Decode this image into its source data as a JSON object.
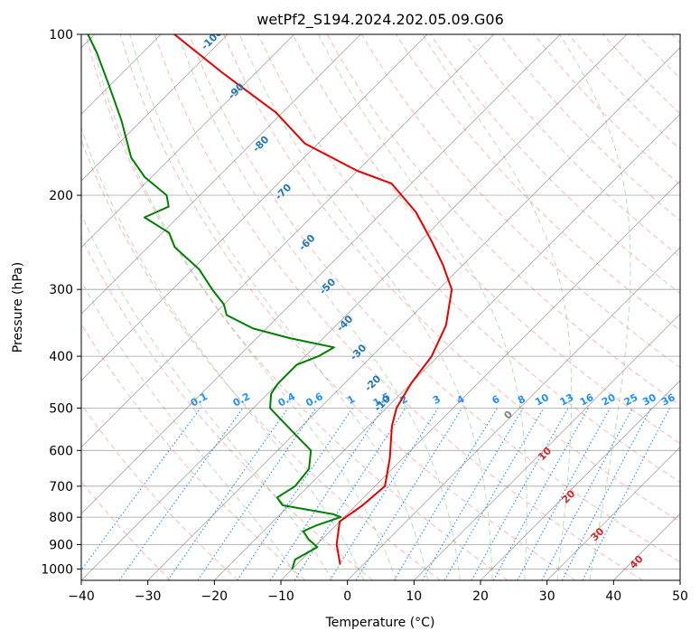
{
  "chart_data": {
    "type": "line",
    "diagram": "skew-t",
    "title": "wetPf2_S194.2024.202.05.09.G06",
    "xlabel": "Temperature (°C)",
    "ylabel": "Pressure (hPa)",
    "x_scale": "linear",
    "y_scale": "log",
    "xlim": [
      -40,
      50
    ],
    "ylim": [
      1050,
      100
    ],
    "x_ticks": [
      "−40",
      "−30",
      "−20",
      "−10",
      "0",
      "10",
      "20",
      "30",
      "40",
      "50"
    ],
    "y_ticks": [
      "100",
      "200",
      "300",
      "400",
      "500",
      "600",
      "700",
      "800",
      "900",
      "1000"
    ],
    "grid": true,
    "series": [
      {
        "role": "temperature",
        "color": "#e60000",
        "points": [
          [
            -3.5,
            980
          ],
          [
            -7,
            900
          ],
          [
            -10,
            815
          ],
          [
            -9,
            760
          ],
          [
            -8.5,
            700
          ],
          [
            -12,
            620
          ],
          [
            -16.5,
            540
          ],
          [
            -18.5,
            500
          ],
          [
            -20,
            450
          ],
          [
            -21,
            400
          ],
          [
            -23.5,
            350
          ],
          [
            -28,
            300
          ],
          [
            -33,
            270
          ],
          [
            -38,
            245
          ],
          [
            -45,
            215
          ],
          [
            -53,
            190
          ],
          [
            -60,
            180
          ],
          [
            -72,
            160
          ],
          [
            -81,
            140
          ],
          [
            -95,
            118
          ],
          [
            -108,
            100
          ]
        ]
      },
      {
        "role": "dewpoint",
        "color": "#008000",
        "points": [
          [
            -10,
            1000
          ],
          [
            -11,
            960
          ],
          [
            -9.5,
            910
          ],
          [
            -12,
            880
          ],
          [
            -14,
            850
          ],
          [
            -13,
            830
          ],
          [
            -10.5,
            800
          ],
          [
            -12,
            790
          ],
          [
            -21,
            760
          ],
          [
            -23,
            735
          ],
          [
            -22,
            700
          ],
          [
            -22.5,
            650
          ],
          [
            -25,
            600
          ],
          [
            -31,
            550
          ],
          [
            -37.5,
            500
          ],
          [
            -39.5,
            470
          ],
          [
            -40,
            450
          ],
          [
            -40,
            415
          ],
          [
            -38,
            400
          ],
          [
            -37,
            385
          ],
          [
            -45,
            370
          ],
          [
            -52,
            355
          ],
          [
            -58,
            335
          ],
          [
            -60,
            320
          ],
          [
            -64,
            300
          ],
          [
            -69,
            275
          ],
          [
            -76,
            250
          ],
          [
            -79,
            235
          ],
          [
            -85,
            220
          ],
          [
            -83,
            210
          ],
          [
            -85,
            200
          ],
          [
            -91,
            185
          ],
          [
            -96,
            170
          ],
          [
            -103,
            145
          ],
          [
            -110,
            125
          ],
          [
            -117,
            108
          ],
          [
            -121,
            100
          ]
        ]
      }
    ],
    "dry_adiabats": [
      -30,
      -20,
      -10,
      0,
      10,
      20,
      30,
      40,
      50,
      60,
      70,
      80,
      90,
      100,
      110,
      120,
      130,
      140,
      150,
      160,
      170,
      180,
      190,
      200
    ],
    "moist_adiabats": [
      -10,
      -5,
      0,
      5,
      10,
      15,
      20,
      25,
      30,
      35
    ],
    "mixing_ratio_labels": [
      "0.1",
      "0.2",
      "0.4",
      "0.6",
      "1",
      "1.5",
      "2",
      "3",
      "4",
      "6",
      "8",
      "10",
      "13",
      "16",
      "20",
      "25",
      "30",
      "36"
    ],
    "mixing_ratio_values": [
      0.1,
      0.2,
      0.4,
      0.6,
      1,
      1.5,
      2,
      3,
      4,
      6,
      8,
      10,
      13,
      16,
      20,
      25,
      30,
      36
    ],
    "moist_adiabat_labels": {
      "blue": [
        [
          "-100",
          100
        ],
        [
          "-90",
          125
        ],
        [
          "-80",
          157
        ],
        [
          "-70",
          193
        ],
        [
          "-60",
          240
        ],
        [
          "-50",
          290
        ],
        [
          "-40",
          340
        ],
        [
          "-30",
          385
        ],
        [
          "-20",
          440
        ],
        [
          "-10",
          480
        ]
      ],
      "gray": [
        [
          "0",
          520
        ]
      ],
      "red": [
        [
          "10",
          615
        ],
        [
          "20",
          740
        ],
        [
          "30",
          870
        ],
        [
          "40",
          980
        ]
      ]
    },
    "colors": {
      "dry_adiabat": "#fa8072",
      "moist_adiabat": "#6ab46a",
      "mixing_ratio": "#1e90ff",
      "isotherm": "#808080",
      "label_blue": "#1f77b4",
      "label_red": "#d62728"
    }
  }
}
